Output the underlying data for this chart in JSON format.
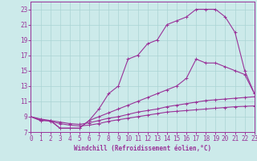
{
  "xlabel": "Windchill (Refroidissement éolien,°C)",
  "bg_color": "#cceaea",
  "grid_color": "#aad4d4",
  "line_color": "#993399",
  "spine_color": "#993399",
  "xlim": [
    0,
    23
  ],
  "ylim": [
    7,
    24
  ],
  "xticks": [
    0,
    1,
    2,
    3,
    4,
    5,
    6,
    7,
    8,
    9,
    10,
    11,
    12,
    13,
    14,
    15,
    16,
    17,
    18,
    19,
    20,
    21,
    22,
    23
  ],
  "yticks": [
    7,
    9,
    11,
    13,
    15,
    17,
    19,
    21,
    23
  ],
  "curve1_x": [
    0,
    1,
    2,
    3,
    4,
    5,
    6,
    7,
    8,
    9,
    10,
    11,
    12,
    13,
    14,
    15,
    16,
    17,
    18,
    19,
    20,
    21,
    22,
    23
  ],
  "curve1_y": [
    9.0,
    8.5,
    8.5,
    7.5,
    7.5,
    7.5,
    8.5,
    10.0,
    12.0,
    13.0,
    16.5,
    17.0,
    18.5,
    19.0,
    21.0,
    21.5,
    22.0,
    23.0,
    23.0,
    23.0,
    22.0,
    20.0,
    15.0,
    12.0
  ],
  "curve2_x": [
    0,
    1,
    2,
    3,
    4,
    5,
    6,
    7,
    8,
    9,
    10,
    11,
    12,
    13,
    14,
    15,
    16,
    17,
    18,
    19,
    20,
    21,
    22,
    23
  ],
  "curve2_y": [
    9.0,
    8.5,
    8.5,
    7.5,
    7.5,
    7.5,
    8.5,
    9.0,
    9.5,
    10.0,
    10.5,
    11.0,
    11.5,
    12.0,
    12.5,
    13.0,
    14.0,
    16.5,
    16.0,
    16.0,
    15.5,
    15.0,
    14.5,
    12.0
  ],
  "curve3_x": [
    0,
    1,
    2,
    3,
    4,
    5,
    6,
    7,
    8,
    9,
    10,
    11,
    12,
    13,
    14,
    15,
    16,
    17,
    18,
    19,
    20,
    21,
    22,
    23
  ],
  "curve3_y": [
    9.0,
    8.7,
    8.5,
    8.3,
    8.1,
    8.0,
    8.2,
    8.5,
    8.8,
    9.0,
    9.3,
    9.6,
    9.8,
    10.0,
    10.3,
    10.5,
    10.7,
    10.9,
    11.1,
    11.2,
    11.3,
    11.4,
    11.5,
    11.6
  ],
  "curve4_x": [
    0,
    1,
    2,
    3,
    4,
    5,
    6,
    7,
    8,
    9,
    10,
    11,
    12,
    13,
    14,
    15,
    16,
    17,
    18,
    19,
    20,
    21,
    22,
    23
  ],
  "curve4_y": [
    9.0,
    8.6,
    8.4,
    8.1,
    7.9,
    7.8,
    7.9,
    8.1,
    8.4,
    8.6,
    8.8,
    9.0,
    9.2,
    9.4,
    9.6,
    9.7,
    9.8,
    9.9,
    10.0,
    10.1,
    10.2,
    10.3,
    10.35,
    10.4
  ],
  "tick_fontsize": 5.5,
  "xlabel_fontsize": 5.5,
  "marker_size": 2.5,
  "line_width": 0.8
}
